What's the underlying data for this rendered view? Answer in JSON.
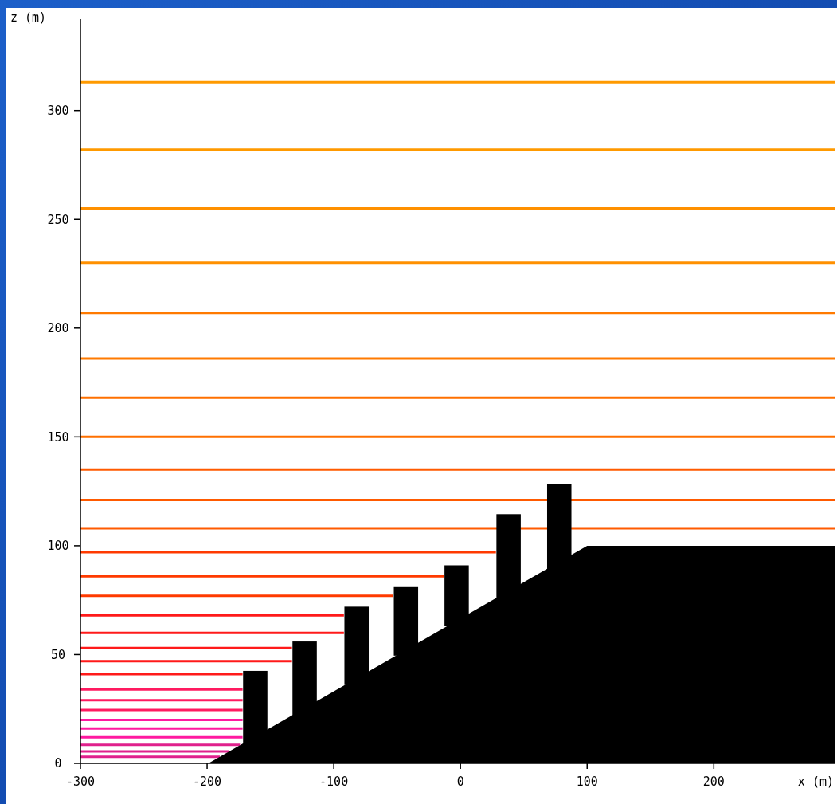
{
  "chart_data": {
    "type": "line",
    "xlabel": "x (m)",
    "ylabel": "z (m)",
    "xlim": [
      -300,
      296
    ],
    "ylim": [
      0,
      342
    ],
    "xticks": [
      -300,
      -200,
      -100,
      0,
      100,
      200
    ],
    "yticks": [
      0,
      50,
      100,
      150,
      200,
      250,
      300
    ],
    "grid": false,
    "marker": "none",
    "line_style": "solid",
    "series": [
      {
        "type": "area",
        "color": "#000000",
        "x": [
          -300,
          -199,
          100,
          296
        ],
        "values": [
          0,
          0,
          100,
          100
        ]
      },
      {
        "type": "bar",
        "color": "#000000",
        "x": [
          -162,
          -123,
          -82,
          -43,
          -3,
          38,
          78
        ],
        "base": [
          9,
          22,
          36,
          49.5,
          63,
          76,
          89
        ],
        "values": [
          33.5,
          34,
          36,
          31.5,
          28,
          38.5,
          39.5
        ]
      },
      {
        "color": "#ff9a00",
        "x": [
          -300,
          296
        ],
        "values": [
          313,
          313
        ]
      },
      {
        "color": "#ff9a00",
        "x": [
          -300,
          296
        ],
        "values": [
          282,
          282
        ]
      },
      {
        "color": "#ff9000",
        "x": [
          -300,
          296
        ],
        "values": [
          255,
          255
        ]
      },
      {
        "color": "#ff9000",
        "x": [
          -300,
          296
        ],
        "values": [
          230,
          230
        ]
      },
      {
        "color": "#ff7a00",
        "x": [
          -300,
          296
        ],
        "values": [
          207,
          207
        ]
      },
      {
        "color": "#ff7a00",
        "x": [
          -300,
          296
        ],
        "values": [
          186,
          186
        ]
      },
      {
        "color": "#ff7000",
        "x": [
          -300,
          296
        ],
        "values": [
          168,
          168
        ]
      },
      {
        "color": "#ff7000",
        "x": [
          -300,
          296
        ],
        "values": [
          150,
          150
        ]
      },
      {
        "color": "#ff5a00",
        "x": [
          -300,
          296
        ],
        "values": [
          135,
          135
        ]
      },
      {
        "color": "#ff5a00",
        "x": [
          -300,
          296
        ],
        "values": [
          121,
          121
        ]
      },
      {
        "color": "#ff5a00",
        "x": [
          -300,
          296
        ],
        "values": [
          108,
          108
        ]
      },
      {
        "color": "#ff3a00",
        "x": [
          -300,
          28
        ],
        "values": [
          97,
          97
        ]
      },
      {
        "color": "#ff3a00",
        "x": [
          -300,
          -13
        ],
        "values": [
          86,
          86
        ]
      },
      {
        "color": "#ff3a00",
        "x": [
          -300,
          -53
        ],
        "values": [
          77,
          77
        ]
      },
      {
        "color": "#ff1a1a",
        "x": [
          -300,
          -92
        ],
        "values": [
          68,
          68
        ]
      },
      {
        "color": "#ff1a1a",
        "x": [
          -300,
          -92
        ],
        "values": [
          60,
          60
        ]
      },
      {
        "color": "#ff1a1a",
        "x": [
          -300,
          -133
        ],
        "values": [
          53,
          53
        ]
      },
      {
        "color": "#ff1a1a",
        "x": [
          -300,
          -133
        ],
        "values": [
          47,
          47
        ]
      },
      {
        "color": "#ff1a1a",
        "x": [
          -300,
          -172
        ],
        "values": [
          41,
          41
        ]
      },
      {
        "color": "#ff1a60",
        "x": [
          -300,
          -172
        ],
        "values": [
          34,
          34
        ]
      },
      {
        "color": "#ff1a60",
        "x": [
          -300,
          -172
        ],
        "values": [
          29,
          29
        ]
      },
      {
        "color": "#ff1a60",
        "x": [
          -300,
          -172
        ],
        "values": [
          24.5,
          24.5
        ]
      },
      {
        "color": "#ff1aa0",
        "x": [
          -300,
          -172
        ],
        "values": [
          20,
          20
        ]
      },
      {
        "color": "#ff1aa0",
        "x": [
          -300,
          -172
        ],
        "values": [
          16,
          16
        ]
      },
      {
        "color": "#ff1aa0",
        "x": [
          -300,
          -172
        ],
        "values": [
          12,
          12
        ]
      },
      {
        "color": "#e0208c",
        "x": [
          -300,
          -174
        ],
        "values": [
          8.5,
          8.5
        ]
      },
      {
        "color": "#e0208c",
        "x": [
          -300,
          -183
        ],
        "values": [
          5.5,
          5.5
        ]
      },
      {
        "color": "#e0208c",
        "x": [
          -300,
          -190
        ],
        "values": [
          3,
          3
        ]
      }
    ]
  }
}
